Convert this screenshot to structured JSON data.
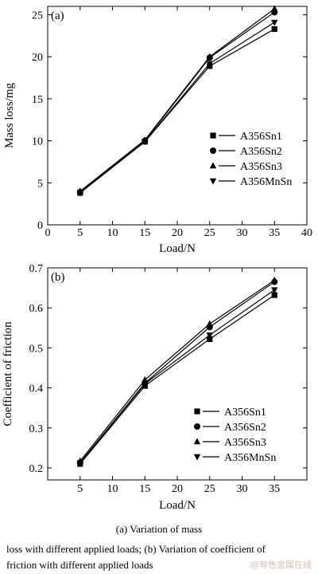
{
  "chart_data": [
    {
      "type": "line",
      "panel_label": "(a)",
      "xlabel": "Load/N",
      "ylabel": "Mass loss/mg",
      "xlim": [
        0,
        40
      ],
      "ylim": [
        0,
        26
      ],
      "x_ticks": [
        0,
        5,
        10,
        15,
        20,
        25,
        30,
        35,
        40
      ],
      "y_ticks": [
        0,
        5,
        10,
        15,
        20,
        25
      ],
      "grid": false,
      "legend_position": "right-middle",
      "x": [
        5,
        15,
        25,
        35
      ],
      "series": [
        {
          "name": "A356Sn1",
          "marker": "square",
          "values": [
            3.8,
            9.9,
            18.9,
            23.3
          ]
        },
        {
          "name": "A356Sn2",
          "marker": "circle",
          "values": [
            3.9,
            10.0,
            19.9,
            25.3
          ]
        },
        {
          "name": "A356Sn3",
          "marker": "triangle-up",
          "values": [
            4.0,
            10.1,
            20.0,
            25.7
          ]
        },
        {
          "name": "A356MnSn",
          "marker": "triangle-down",
          "values": [
            3.8,
            9.9,
            19.2,
            24.1
          ]
        }
      ]
    },
    {
      "type": "line",
      "panel_label": "(b)",
      "xlabel": "Load/N",
      "ylabel": "Coefficient of friction",
      "xlim": [
        0,
        40
      ],
      "ylim": [
        0.17,
        0.7
      ],
      "x_ticks": [
        5,
        10,
        15,
        20,
        25,
        30,
        35
      ],
      "y_ticks": [
        0.2,
        0.3,
        0.4,
        0.5,
        0.6,
        0.7
      ],
      "grid": false,
      "legend_position": "bottom-right",
      "x": [
        5,
        15,
        25,
        35
      ],
      "series": [
        {
          "name": "A356Sn1",
          "marker": "square",
          "values": [
            0.21,
            0.405,
            0.522,
            0.632
          ]
        },
        {
          "name": "A356Sn2",
          "marker": "circle",
          "values": [
            0.213,
            0.412,
            0.552,
            0.665
          ]
        },
        {
          "name": "A356Sn3",
          "marker": "triangle-up",
          "values": [
            0.217,
            0.42,
            0.56,
            0.669
          ]
        },
        {
          "name": "A356MnSn",
          "marker": "triangle-down",
          "values": [
            0.213,
            0.41,
            0.532,
            0.645
          ]
        }
      ]
    }
  ],
  "caption": {
    "line1": "(a) Variation of mass",
    "line2": "loss with different applied loads; (b) Variation of coefficient of",
    "line3": "friction with different applied loads"
  },
  "watermark": "@有色金属在线",
  "colors": {
    "ink": "#000000",
    "background": "#ffffff",
    "watermark": "#e3b8b8"
  }
}
